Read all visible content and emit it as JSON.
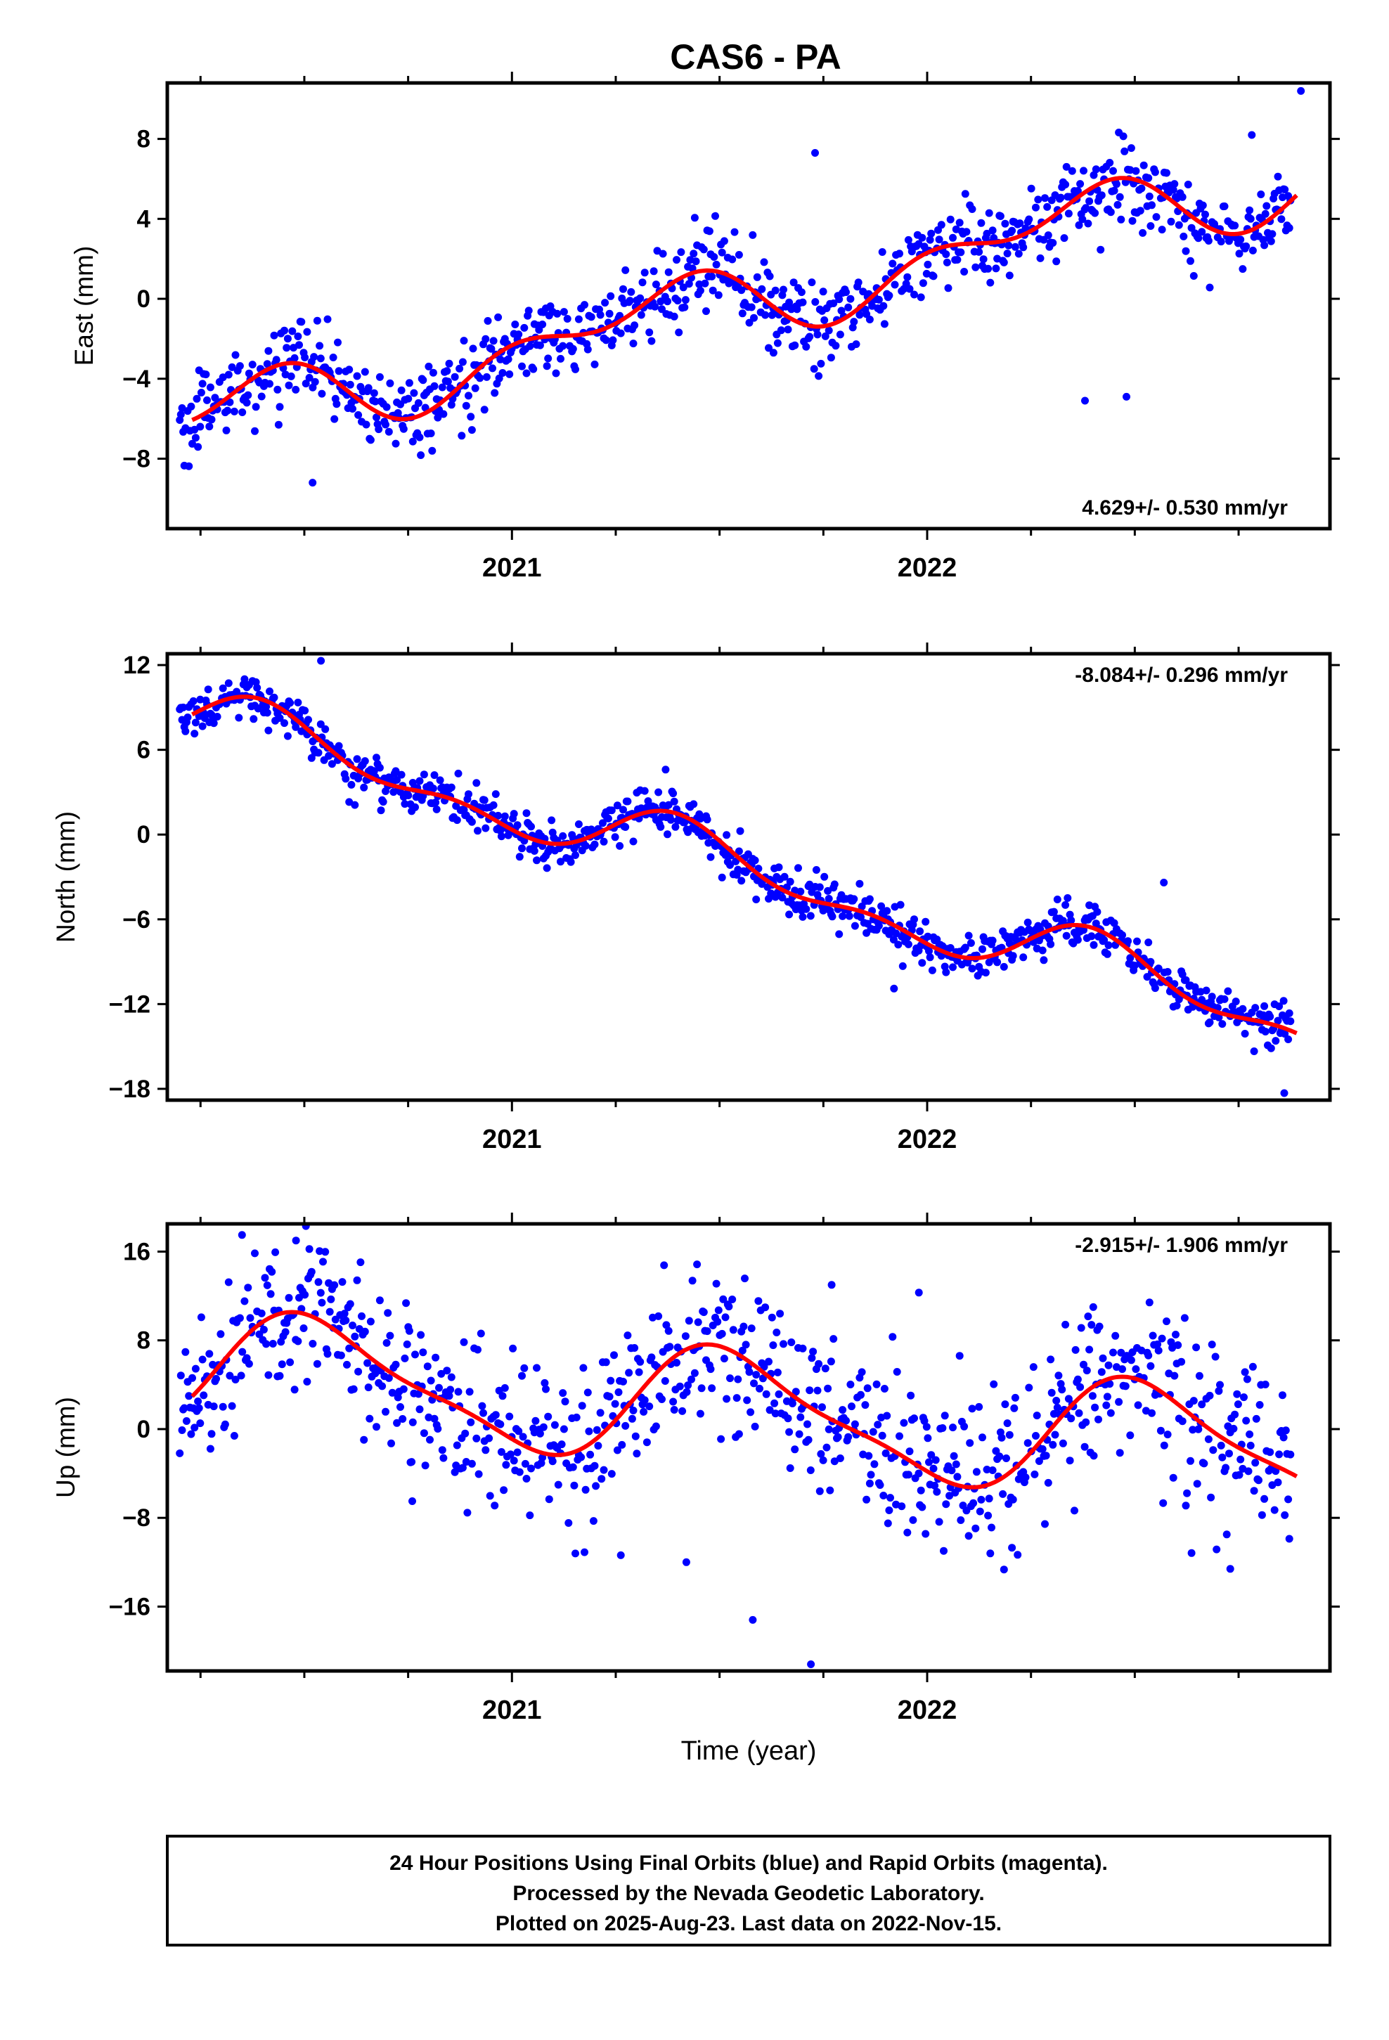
{
  "title": "CAS6 - PA",
  "footer": {
    "lines": [
      "24 Hour Positions Using Final Orbits (blue) and Rapid Orbits (magenta).",
      "Processed by the Nevada Geodetic Laboratory.",
      "Plotted on 2025-Aug-23. Last data on 2022-Nov-15."
    ]
  },
  "colors": {
    "final_orbit_points": "#0000ff",
    "fit_line": "#ff0000",
    "frame": "#000000"
  },
  "chart_data": [
    {
      "type": "scatter",
      "name": "east",
      "ylabel": "East (mm)",
      "xlabel": "",
      "xlim": [
        2020.17,
        2022.97
      ],
      "ylim": [
        -11.5,
        10.8
      ],
      "yticks": [
        -8,
        -4,
        0,
        4,
        8
      ],
      "ytick_labels": [
        "−8",
        "−4",
        "0",
        "4",
        "8"
      ],
      "xticks": [
        2021,
        2022
      ],
      "xtick_labels": [
        "2021",
        "2022"
      ],
      "rate_text": "4.629+/- 0.530 mm/yr",
      "rate_position": "bottom-right",
      "trend": {
        "rate": 4.629,
        "value_at_start": -6.2,
        "start": 2020.23
      },
      "seasonal_terms": [
        {
          "amplitude": -1.4,
          "period": 1.0,
          "phase": 2020.58
        },
        {
          "amplitude": 1.0,
          "period": 0.5,
          "phase": 2020.36
        }
      ],
      "noise_sd": 1.0,
      "outliers": [
        {
          "x": 2022.38,
          "y": -5.1
        },
        {
          "x": 2022.48,
          "y": -4.9
        },
        {
          "x": 2021.63,
          "y": -2.7
        },
        {
          "x": 2022.9,
          "y": 10.4
        },
        {
          "x": 2021.73,
          "y": 7.3
        },
        {
          "x": 2020.52,
          "y": -9.2
        }
      ]
    },
    {
      "type": "scatter",
      "name": "north",
      "ylabel": "North (mm)",
      "xlabel": "",
      "xlim": [
        2020.17,
        2022.97
      ],
      "ylim": [
        -18.8,
        12.8
      ],
      "yticks": [
        -18,
        -12,
        -6,
        0,
        6,
        12
      ],
      "ytick_labels": [
        "−18",
        "−12",
        "−6",
        "0",
        "6",
        "12"
      ],
      "xticks": [
        2021,
        2022
      ],
      "xtick_labels": [
        "2021",
        "2022"
      ],
      "rate_text": "-8.084+/- 0.296 mm/yr",
      "rate_position": "top-right",
      "trend": {
        "rate": -8.084,
        "value_at_start": 8.2,
        "start": 2020.23
      },
      "seasonal_terms": [
        {
          "amplitude": 1.8,
          "period": 1.0,
          "phase": 2020.18
        },
        {
          "amplitude": 1.0,
          "period": 0.5,
          "phase": 2020.25
        }
      ],
      "noise_sd": 0.8,
      "outliers": [
        {
          "x": 2022.86,
          "y": -18.3
        },
        {
          "x": 2022.57,
          "y": -3.4
        },
        {
          "x": 2021.37,
          "y": 4.6
        },
        {
          "x": 2020.54,
          "y": 12.3
        },
        {
          "x": 2021.92,
          "y": -10.9
        }
      ]
    },
    {
      "type": "scatter",
      "name": "up",
      "ylabel": "Up (mm)",
      "xlabel": "Time (year)",
      "xlim": [
        2020.17,
        2022.97
      ],
      "ylim": [
        -21.8,
        18.5
      ],
      "yticks": [
        -16,
        -8,
        0,
        8,
        16
      ],
      "ytick_labels": [
        "−16",
        "−8",
        "0",
        "8",
        "16"
      ],
      "xticks": [
        2021,
        2022
      ],
      "xtick_labels": [
        "2021",
        "2022"
      ],
      "rate_text": "-2.915+/- 1.906 mm/yr",
      "rate_position": "top-right",
      "trend": {
        "rate": -2.915,
        "value_at_start": 5.5,
        "start": 2020.23
      },
      "seasonal_terms": [
        {
          "amplitude": 5.0,
          "period": 1.0,
          "phase": 2020.28
        },
        {
          "amplitude": 1.3,
          "period": 0.5,
          "phase": 2020.3
        }
      ],
      "noise_sd": 3.6,
      "outliers": [
        {
          "x": 2020.35,
          "y": 17.5
        },
        {
          "x": 2020.48,
          "y": 17.0
        },
        {
          "x": 2021.77,
          "y": 13.0
        },
        {
          "x": 2021.72,
          "y": -21.2
        },
        {
          "x": 2021.58,
          "y": -17.2
        },
        {
          "x": 2022.73,
          "y": -12.6
        },
        {
          "x": 2020.76,
          "y": -6.5
        },
        {
          "x": 2021.98,
          "y": 12.3
        },
        {
          "x": 2022.4,
          "y": 11.0
        },
        {
          "x": 2021.42,
          "y": -12.0
        }
      ]
    }
  ]
}
